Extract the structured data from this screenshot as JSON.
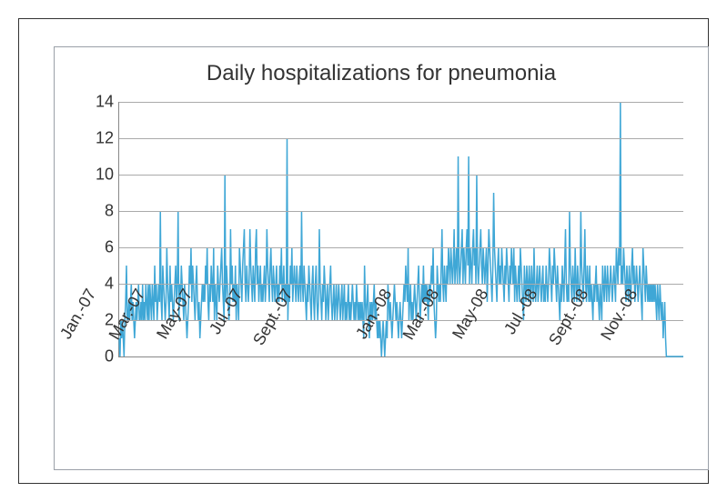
{
  "chart": {
    "type": "line",
    "title": "Daily hospitalizations for pneumonia",
    "title_fontsize": 24,
    "title_color": "#333333",
    "background_color": "#ffffff",
    "outer_border_color": "#333333",
    "inner_border_color": "#9aa0a8",
    "grid_color": "#aaaaaa",
    "tick_label_fontsize": 18,
    "tick_label_color": "#333333",
    "line_color": "#3fa7d6",
    "line_width": 1.5,
    "ylim": [
      0,
      14
    ],
    "yticks": [
      0,
      2,
      4,
      6,
      8,
      10,
      12,
      14
    ],
    "x_categories": [
      "Jan.-07",
      "Mar.-07",
      "May-07",
      "Jul.-07",
      "Sept.-07",
      "",
      "Jan.-08",
      "Mar.-08",
      "May-08",
      "Jul.-08",
      "Sept.-08",
      "Nov.-08"
    ],
    "x_rotation_deg": -60,
    "n_points": 700,
    "x_label_indices": [
      0,
      61,
      120,
      181,
      244,
      305,
      366,
      425,
      486,
      547,
      610,
      671
    ],
    "values": [
      1,
      0,
      2,
      1,
      2,
      1,
      0,
      2,
      3,
      5,
      2,
      2,
      3,
      2,
      3,
      4,
      2,
      3,
      2,
      1,
      2,
      3,
      2,
      3,
      4,
      2,
      2,
      3,
      2,
      4,
      2,
      3,
      2,
      4,
      3,
      2,
      4,
      2,
      4,
      3,
      2,
      4,
      3,
      2,
      5,
      3,
      4,
      2,
      3,
      4,
      3,
      8,
      3,
      2,
      5,
      4,
      3,
      2,
      3,
      6,
      4,
      3,
      2,
      5,
      3,
      4,
      3,
      2,
      3,
      4,
      5,
      3,
      4,
      8,
      2,
      4,
      3,
      5,
      4,
      3,
      2,
      4,
      3,
      2,
      1,
      2,
      3,
      5,
      4,
      6,
      3,
      5,
      4,
      3,
      2,
      4,
      5,
      3,
      2,
      3,
      1,
      2,
      3,
      4,
      3,
      4,
      3,
      5,
      4,
      6,
      3,
      2,
      4,
      3,
      5,
      4,
      3,
      6,
      2,
      4,
      3,
      2,
      5,
      4,
      3,
      4,
      5,
      6,
      4,
      3,
      2,
      10,
      3,
      5,
      4,
      3,
      2,
      3,
      7,
      4,
      5,
      3,
      4,
      3,
      5,
      2,
      4,
      3,
      2,
      6,
      5,
      4,
      3,
      5,
      6,
      7,
      4,
      3,
      5,
      4,
      3,
      4,
      7,
      5,
      4,
      3,
      5,
      4,
      3,
      6,
      7,
      4,
      5,
      3,
      4,
      5,
      3,
      4,
      3,
      4,
      5,
      3,
      4,
      7,
      5,
      4,
      3,
      5,
      6,
      4,
      3,
      5,
      4,
      3,
      4,
      5,
      3,
      4,
      3,
      5,
      4,
      6,
      3,
      4,
      5,
      3,
      4,
      3,
      12,
      2,
      4,
      3,
      5,
      4,
      6,
      3,
      4,
      5,
      4,
      3,
      5,
      4,
      3,
      4,
      5,
      3,
      8,
      4,
      3,
      5,
      4,
      3,
      2,
      4,
      3,
      5,
      4,
      3,
      2,
      4,
      5,
      3,
      2,
      4,
      5,
      3,
      2,
      3,
      7,
      4,
      3,
      2,
      4,
      3,
      5,
      4,
      2,
      3,
      4,
      2,
      3,
      4,
      5,
      3,
      2,
      3,
      4,
      2,
      3,
      4,
      2,
      3,
      4,
      3,
      2,
      3,
      4,
      2,
      3,
      4,
      2,
      3,
      2,
      3,
      4,
      2,
      3,
      2,
      3,
      4,
      3,
      2,
      3,
      2,
      4,
      3,
      2,
      3,
      2,
      3,
      2,
      3,
      2,
      1,
      5,
      3,
      2,
      3,
      4,
      2,
      1,
      3,
      2,
      3,
      2,
      3,
      4,
      2,
      3,
      2,
      1,
      2,
      1,
      2,
      1,
      0,
      1,
      2,
      1,
      0,
      1,
      2,
      1,
      4,
      3,
      2,
      3,
      2,
      1,
      2,
      3,
      4,
      3,
      2,
      3,
      2,
      1,
      2,
      3,
      2,
      1,
      2,
      3,
      4,
      3,
      5,
      4,
      3,
      6,
      2,
      3,
      4,
      2,
      3,
      2,
      3,
      4,
      3,
      2,
      3,
      4,
      5,
      3,
      2,
      3,
      4,
      3,
      5,
      3,
      4,
      3,
      4,
      3,
      2,
      4,
      3,
      4,
      5,
      4,
      6,
      3,
      2,
      1,
      2,
      5,
      4,
      3,
      4,
      3,
      5,
      7,
      4,
      3,
      5,
      4,
      3,
      5,
      4,
      6,
      5,
      4,
      6,
      5,
      4,
      5,
      7,
      4,
      5,
      6,
      4,
      11,
      5,
      4,
      5,
      6,
      7,
      4,
      6,
      5,
      4,
      6,
      7,
      5,
      11,
      4,
      6,
      5,
      4,
      6,
      7,
      5,
      6,
      4,
      10,
      5,
      4,
      5,
      6,
      7,
      5,
      4,
      6,
      5,
      4,
      5,
      6,
      3,
      5,
      7,
      6,
      5,
      4,
      3,
      5,
      9,
      6,
      5,
      4,
      3,
      5,
      6,
      4,
      5,
      4,
      6,
      5,
      4,
      3,
      5,
      4,
      6,
      5,
      4,
      3,
      5,
      4,
      6,
      5,
      4,
      6,
      3,
      5,
      4,
      3,
      4,
      5,
      3,
      6,
      5,
      4,
      3,
      2,
      5,
      4,
      3,
      5,
      4,
      3,
      5,
      4,
      3,
      5,
      4,
      3,
      6,
      4,
      3,
      4,
      5,
      3,
      4,
      5,
      4,
      3,
      4,
      5,
      3,
      4,
      3,
      5,
      4,
      3,
      4,
      6,
      5,
      4,
      3,
      5,
      4,
      6,
      5,
      4,
      3,
      5,
      4,
      3,
      2,
      4,
      3,
      5,
      4,
      3,
      5,
      7,
      4,
      3,
      4,
      3,
      8,
      5,
      4,
      3,
      5,
      4,
      3,
      6,
      4,
      3,
      5,
      4,
      3,
      4,
      8,
      5,
      4,
      3,
      5,
      7,
      4,
      3,
      5,
      4,
      3,
      5,
      3,
      4,
      3,
      2,
      4,
      3,
      4,
      5,
      3,
      4,
      3,
      2,
      4,
      3,
      2,
      5,
      4,
      3,
      5,
      4,
      3,
      5,
      4,
      3,
      4,
      5,
      4,
      3,
      4,
      5,
      4,
      3,
      6,
      5,
      4,
      6,
      5,
      14,
      4,
      5,
      4,
      6,
      5,
      4,
      3,
      5,
      4,
      3,
      5,
      4,
      3,
      5,
      6,
      4,
      5,
      3,
      4,
      5,
      4,
      3,
      4,
      5,
      4,
      3,
      2,
      6,
      5,
      4,
      3,
      5,
      4,
      3,
      4,
      3,
      4,
      3,
      4,
      3,
      4,
      3,
      4,
      3,
      2,
      4,
      3,
      2,
      4,
      3,
      2,
      3,
      1,
      2,
      3,
      1,
      0,
      0,
      0,
      0,
      0,
      0,
      0,
      0,
      0,
      0,
      0,
      0,
      0,
      0,
      0,
      0,
      0,
      0,
      0,
      0,
      0,
      0
    ]
  }
}
